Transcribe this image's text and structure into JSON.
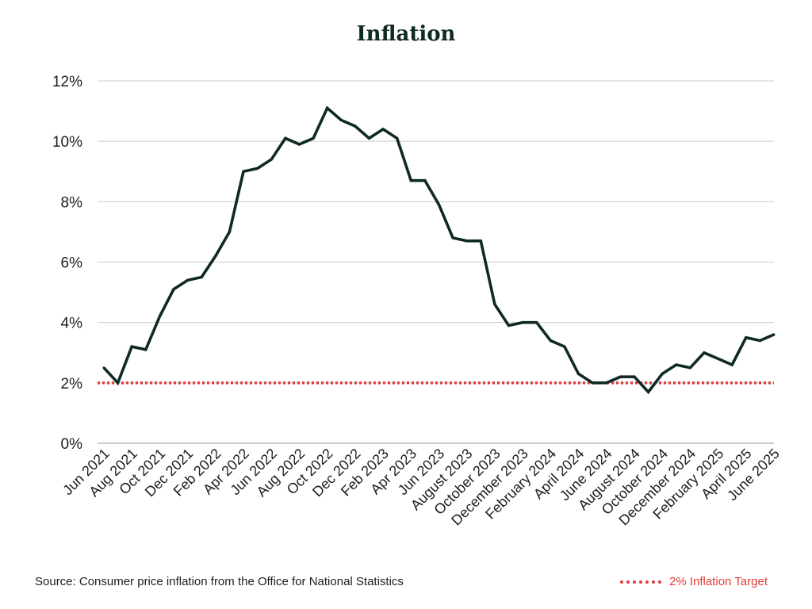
{
  "colors": {
    "line": "#0f2a24",
    "target": "#e03c3c",
    "grid": "#cccccc",
    "axis": "#1d1d1d"
  },
  "chart_data": {
    "type": "line",
    "title": "Inflation",
    "xlabel": "",
    "ylabel": "",
    "ylim": [
      0,
      12
    ],
    "yticks": [
      "0%",
      "2%",
      "4%",
      "6%",
      "8%",
      "10%",
      "12%"
    ],
    "grid": true,
    "legend_position": "bottom-right",
    "x_tick_labels": [
      "Jun 2021",
      "Aug 2021",
      "Oct 2021",
      "Dec 2021",
      "Feb 2022",
      "Apr 2022",
      "Jun 2022",
      "Aug 2022",
      "Oct 2022",
      "Dec 2022",
      "Feb 2023",
      "Apr 2023",
      "Jun 2023",
      "August 2023",
      "October 2023",
      "December 2023",
      "February 2024",
      "April 2024",
      "June 2024",
      "August 2024",
      "October 2024",
      "December 2024",
      "February 2025",
      "April 2025",
      "June 2025"
    ],
    "series": [
      {
        "values": [
          2.5,
          2.0,
          3.2,
          3.1,
          4.2,
          5.1,
          5.4,
          5.5,
          6.2,
          7.0,
          9.0,
          9.1,
          9.4,
          10.1,
          9.9,
          10.1,
          11.1,
          10.7,
          10.5,
          10.1,
          10.4,
          10.1,
          8.7,
          8.7,
          7.9,
          6.8,
          6.7,
          6.7,
          4.6,
          3.9,
          4.0,
          4.0,
          3.4,
          3.2,
          2.3,
          2.0,
          2.0,
          2.2,
          2.2,
          1.7,
          2.3,
          2.6,
          2.5,
          3.0,
          2.8,
          2.6,
          3.5,
          3.4,
          3.6
        ]
      }
    ],
    "reference_line": {
      "name": "2% Inflation Target",
      "value": 2
    }
  },
  "footer": {
    "source": "Source: Consumer price inflation from the Office for National Statistics"
  }
}
